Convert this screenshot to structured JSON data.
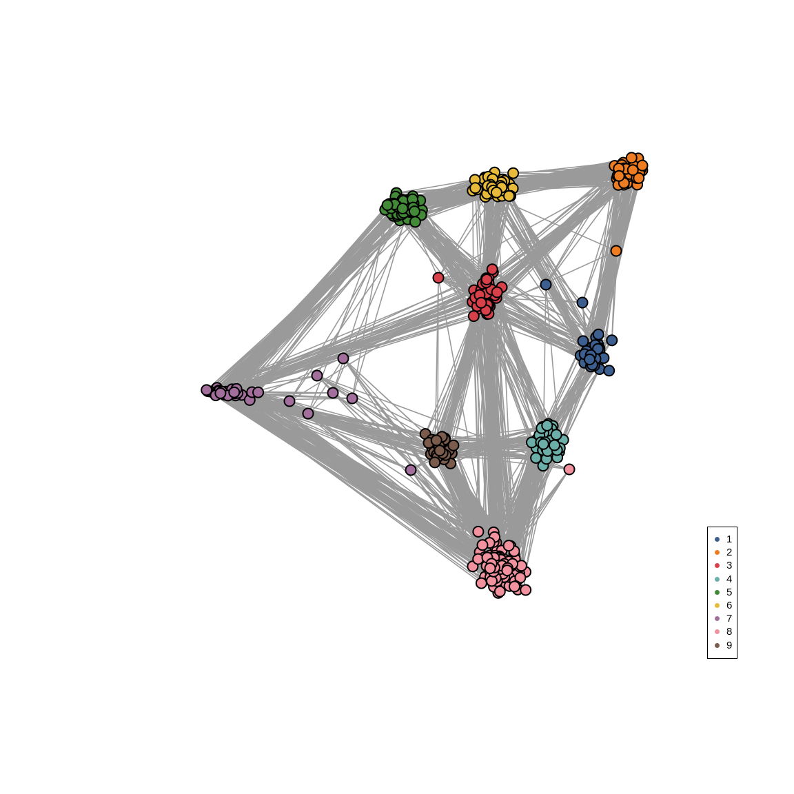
{
  "legend": {
    "items": [
      {
        "label": "1",
        "color": "#3D5F8F"
      },
      {
        "label": "2",
        "color": "#EE7D22"
      },
      {
        "label": "3",
        "color": "#D8404A"
      },
      {
        "label": "4",
        "color": "#6BAFA8"
      },
      {
        "label": "5",
        "color": "#428A38"
      },
      {
        "label": "6",
        "color": "#E8BA3A"
      },
      {
        "label": "7",
        "color": "#A26E9C"
      },
      {
        "label": "8",
        "color": "#F2929F"
      },
      {
        "label": "9",
        "color": "#7B5B4C"
      }
    ]
  },
  "graph": {
    "edge_color": "#9a9a9a",
    "node_outline": "#000000",
    "clusters": [
      {
        "label": "1",
        "node_count": 34
      },
      {
        "label": "2",
        "node_count": 45
      },
      {
        "label": "3",
        "node_count": 38
      },
      {
        "label": "4",
        "node_count": 32
      },
      {
        "label": "5",
        "node_count": 66
      },
      {
        "label": "6",
        "node_count": 50
      },
      {
        "label": "7",
        "node_count": 30
      },
      {
        "label": "8",
        "node_count": 108
      },
      {
        "label": "9",
        "node_count": 30
      }
    ]
  }
}
